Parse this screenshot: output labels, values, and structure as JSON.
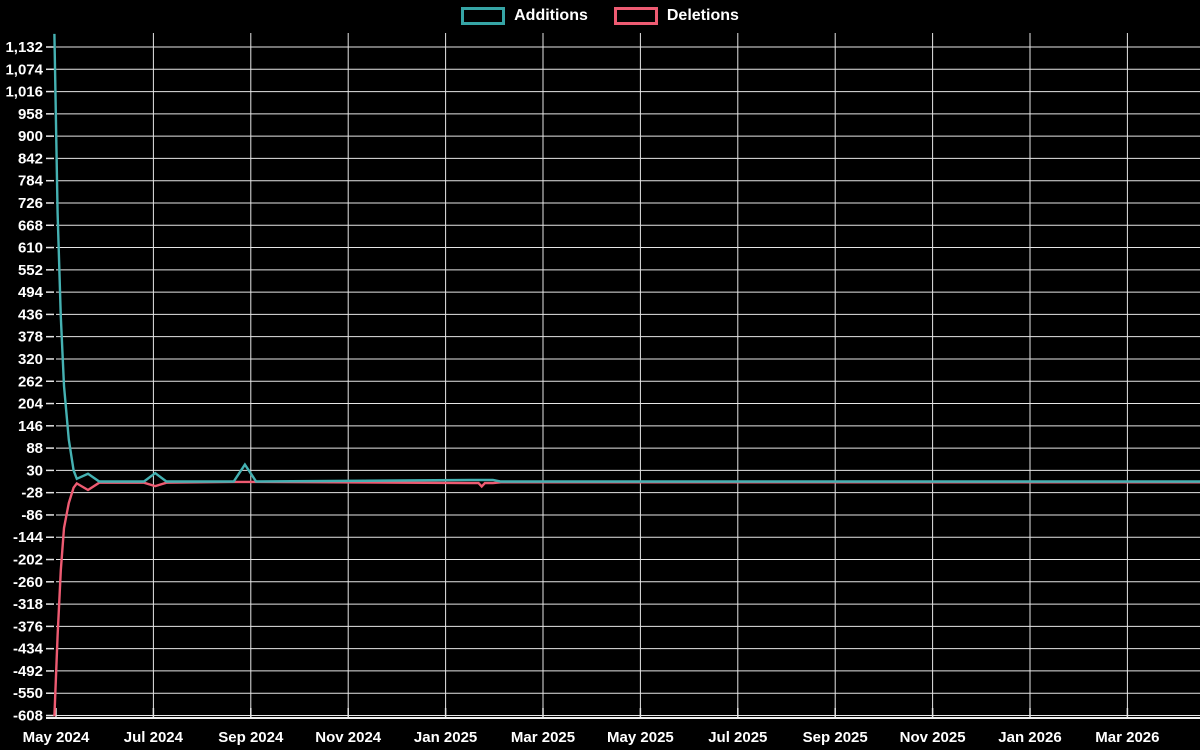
{
  "legend": {
    "items": [
      {
        "label": "Additions",
        "color": "#36a5a6"
      },
      {
        "label": "Deletions",
        "color": "#ee5b72"
      }
    ]
  },
  "colors": {
    "background": "#000000",
    "grid": "#e6e6e6",
    "axis": "#f0f0f0",
    "text": "#ffffff",
    "additions_line": "#45b1b2",
    "deletions_line": "#ee5b72"
  },
  "chart_data": {
    "type": "line",
    "title": "",
    "xlabel": "",
    "ylabel": "",
    "grid": true,
    "legend_position": "top-center",
    "x_axis": {
      "tick_labels": [
        "May 2024",
        "Jul 2024",
        "Sep 2024",
        "Nov 2024",
        "Jan 2025",
        "Mar 2025",
        "May 2025",
        "Jul 2025",
        "Sep 2025",
        "Nov 2025",
        "Jan 2026",
        "Mar 2026"
      ],
      "start_date": "2024-05-01",
      "months_per_tick": 2
    },
    "y_axis": {
      "max": 1132,
      "min": -608,
      "tick_step": 58,
      "tick_values": [
        1132,
        1074,
        1016,
        958,
        900,
        842,
        784,
        726,
        668,
        610,
        552,
        494,
        436,
        378,
        320,
        262,
        204,
        146,
        88,
        30,
        -28,
        -86,
        -144,
        -202,
        -260,
        -318,
        -376,
        -434,
        -492,
        -550,
        -608
      ]
    },
    "series": [
      {
        "name": "Additions",
        "color": "#45b1b2",
        "points": [
          [
            "2024-04-30",
            1166
          ],
          [
            "2024-05-02",
            700
          ],
          [
            "2024-05-04",
            430
          ],
          [
            "2024-05-06",
            250
          ],
          [
            "2024-05-09",
            110
          ],
          [
            "2024-05-12",
            30
          ],
          [
            "2024-05-14",
            8
          ],
          [
            "2024-05-21",
            21
          ],
          [
            "2024-05-28",
            1
          ],
          [
            "2024-06-25",
            1
          ],
          [
            "2024-07-02",
            23
          ],
          [
            "2024-07-09",
            1
          ],
          [
            "2024-08-20",
            1
          ],
          [
            "2024-08-27",
            45
          ],
          [
            "2024-09-03",
            1
          ],
          [
            "2025-01-15",
            5
          ],
          [
            "2025-01-29",
            5
          ],
          [
            "2025-02-03",
            1
          ],
          [
            "2026-04-16",
            1
          ]
        ]
      },
      {
        "name": "Deletions",
        "color": "#ee5b72",
        "points": [
          [
            "2024-04-30",
            -610
          ],
          [
            "2024-05-02",
            -400
          ],
          [
            "2024-05-04",
            -230
          ],
          [
            "2024-05-06",
            -120
          ],
          [
            "2024-05-09",
            -55
          ],
          [
            "2024-05-12",
            -15
          ],
          [
            "2024-05-14",
            -4
          ],
          [
            "2024-05-21",
            -21
          ],
          [
            "2024-05-28",
            -2
          ],
          [
            "2024-06-25",
            -2
          ],
          [
            "2024-07-02",
            -11
          ],
          [
            "2024-07-09",
            -2
          ],
          [
            "2024-08-20",
            0
          ],
          [
            "2024-08-27",
            0
          ],
          [
            "2024-09-03",
            0
          ],
          [
            "2025-01-15",
            -3
          ],
          [
            "2025-01-20",
            -3
          ],
          [
            "2025-01-22",
            -12
          ],
          [
            "2025-01-24",
            -3
          ],
          [
            "2025-01-29",
            -3
          ],
          [
            "2025-02-03",
            -1
          ],
          [
            "2026-04-16",
            -1
          ]
        ]
      }
    ]
  }
}
